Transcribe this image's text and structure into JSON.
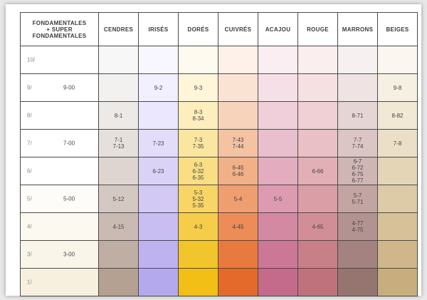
{
  "headers": [
    "FONDAMENTALES\n+ SUPER\nFONDAMENTALES",
    "CENDRES",
    "IRISÉS",
    "DORÉS",
    "CUIVRÉS",
    "ACAJOU",
    "ROUGE",
    "MARRONS",
    "BEIGES"
  ],
  "rows": [
    {
      "level": "10/",
      "base": "",
      "cells": [
        "",
        "",
        "",
        "",
        "",
        "",
        "",
        ""
      ]
    },
    {
      "level": "9/",
      "base": "9-00",
      "cells": [
        "",
        "9-2",
        "9-3",
        "",
        "",
        "",
        "",
        "9-8"
      ]
    },
    {
      "level": "8/",
      "base": "",
      "cells": [
        "8-1",
        "",
        "8-3\n8-34",
        "",
        "",
        "",
        "8-71",
        "8-82"
      ]
    },
    {
      "level": "7/",
      "base": "7-00",
      "cells": [
        "7-1\n7-13",
        "7-23",
        "7-3\n7-35",
        "7-43\n7-44",
        "",
        "",
        "7-7\n7-74",
        "7-8"
      ]
    },
    {
      "level": "6/",
      "base": "",
      "cells": [
        "",
        "6-23",
        "6-3\n6-32\n6-35",
        "6-45\n6-46",
        "",
        "6-66",
        "6-7\n6-72\n6-75\n6-77",
        ""
      ]
    },
    {
      "level": "5/",
      "base": "5-00",
      "cells": [
        "5-12",
        "",
        "5-3\n5-32\n5-35",
        "5-4",
        "5-5",
        "",
        "5-7\n5-71",
        ""
      ]
    },
    {
      "level": "4/",
      "base": "",
      "cells": [
        "4-15",
        "",
        "4-3",
        "4-45",
        "",
        "4-65",
        "4-77\n4-75",
        ""
      ]
    },
    {
      "level": "3/",
      "base": "3-00",
      "cells": [
        "",
        "",
        "",
        "",
        "",
        "",
        "",
        ""
      ]
    },
    {
      "level": "1/",
      "base": "",
      "cells": [
        "",
        "",
        "",
        "",
        "",
        "",
        "",
        ""
      ]
    }
  ],
  "colors": {
    "first": [
      "#ffffff",
      "#ffffff",
      "#ffffff",
      "#ffffff",
      "#ffffff",
      "#fefcf8",
      "#fcf9f1",
      "#faf5e9",
      "#f8f0df"
    ],
    "cendres": [
      "#f8f7f7",
      "#f3f1f0",
      "#ede9e7",
      "#e6e0dc",
      "#ded5d0",
      "#d4c9c2",
      "#c9bbb3",
      "#bfaea3",
      "#b5a191"
    ],
    "irises": [
      "#f8f6ff",
      "#f2efff",
      "#ebe7fc",
      "#e3ddfa",
      "#dbd3f7",
      "#d2c9f5",
      "#c8bef2",
      "#beb3ef",
      "#b4a9ec"
    ],
    "dores": [
      "#fffaf0",
      "#fff5d9",
      "#fdefbd",
      "#fbe6a0",
      "#f9de84",
      "#f7d566",
      "#f5cd49",
      "#f3c52d",
      "#f1bf15"
    ],
    "cuivres": [
      "#fdf1ea",
      "#fbe3d4",
      "#f8d3bc",
      "#f5c2a2",
      "#f2b089",
      "#ef9e70",
      "#ec8c56",
      "#e97a3f",
      "#e36a2a"
    ],
    "acajou": [
      "#faeef2",
      "#f5e0e7",
      "#f0cfda",
      "#eabfcd",
      "#e3adbf",
      "#dc9bb1",
      "#d489a3",
      "#cc7795",
      "#c46a8a"
    ],
    "rouge": [
      "#faeeef",
      "#f5e0e2",
      "#f0d0d4",
      "#e9c0c5",
      "#e2afb6",
      "#da9ea6",
      "#d18e97",
      "#c87f88",
      "#c0727c"
    ],
    "marrons": [
      "#f7f0f0",
      "#efe3e3",
      "#e6d5d5",
      "#dbc6c5",
      "#cfb6b5",
      "#c2a5a3",
      "#b39391",
      "#a4827f",
      "#967470"
    ],
    "beiges": [
      "#fbf7f0",
      "#f6f0e3",
      "#f1e8d5",
      "#ebdfc7",
      "#e4d5b7",
      "#ddcba8",
      "#d6c199",
      "#cfb78b",
      "#c8ae7f"
    ]
  }
}
